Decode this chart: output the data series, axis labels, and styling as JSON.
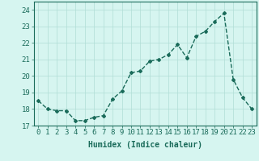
{
  "x": [
    0,
    1,
    2,
    3,
    4,
    5,
    6,
    7,
    8,
    9,
    10,
    11,
    12,
    13,
    14,
    15,
    16,
    17,
    18,
    19,
    20,
    21,
    22,
    23
  ],
  "y": [
    18.5,
    18.0,
    17.9,
    17.9,
    17.3,
    17.3,
    17.5,
    17.6,
    18.6,
    19.1,
    20.2,
    20.3,
    20.9,
    21.0,
    21.3,
    21.9,
    21.1,
    22.4,
    22.7,
    23.3,
    23.8,
    19.8,
    18.7,
    18.0
  ],
  "line_color": "#1a6b5a",
  "marker": "D",
  "marker_size": 2,
  "linewidth": 1.0,
  "bg_color": "#d6f5f0",
  "grid_color": "#b0ddd6",
  "xlabel": "Humidex (Indice chaleur)",
  "ylim": [
    17,
    24.5
  ],
  "xlim": [
    -0.5,
    23.5
  ],
  "yticks": [
    17,
    18,
    19,
    20,
    21,
    22,
    23,
    24
  ],
  "xticks": [
    0,
    1,
    2,
    3,
    4,
    5,
    6,
    7,
    8,
    9,
    10,
    11,
    12,
    13,
    14,
    15,
    16,
    17,
    18,
    19,
    20,
    21,
    22,
    23
  ],
  "xlabel_fontsize": 7,
  "tick_fontsize": 6.5,
  "text_color": "#1a6b5a"
}
